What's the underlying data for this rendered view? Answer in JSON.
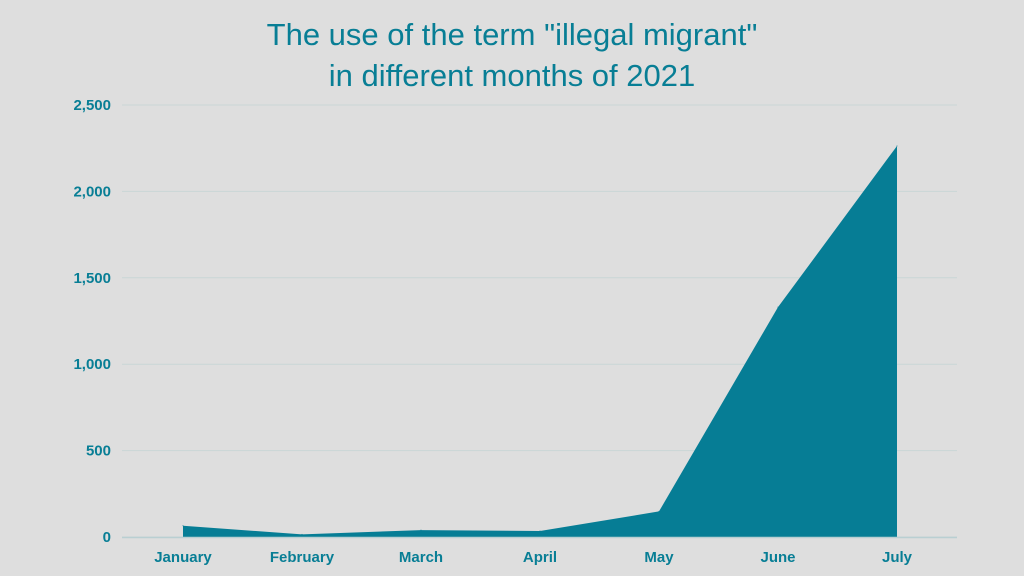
{
  "chart_data": {
    "type": "area",
    "title_line1": "The use of the term \"illegal migrant\"",
    "title_line2": "in different months of 2021",
    "xlabel": "",
    "ylabel": "",
    "categories": [
      "January",
      "February",
      "March",
      "April",
      "May",
      "June",
      "July"
    ],
    "values": [
      65,
      15,
      40,
      35,
      148,
      1330,
      2263
    ],
    "ylim": [
      0,
      2500
    ],
    "yticks": [
      0,
      500,
      1000,
      1500,
      2000,
      2500
    ],
    "ytick_labels": [
      "0",
      "500",
      "1,000",
      "1,500",
      "2,000",
      "2,500"
    ],
    "grid": true,
    "legend": "none",
    "colors": {
      "fill": "#067d95",
      "text": "#087e95",
      "grid": "#c9d6d6",
      "background": "#dedede"
    }
  }
}
